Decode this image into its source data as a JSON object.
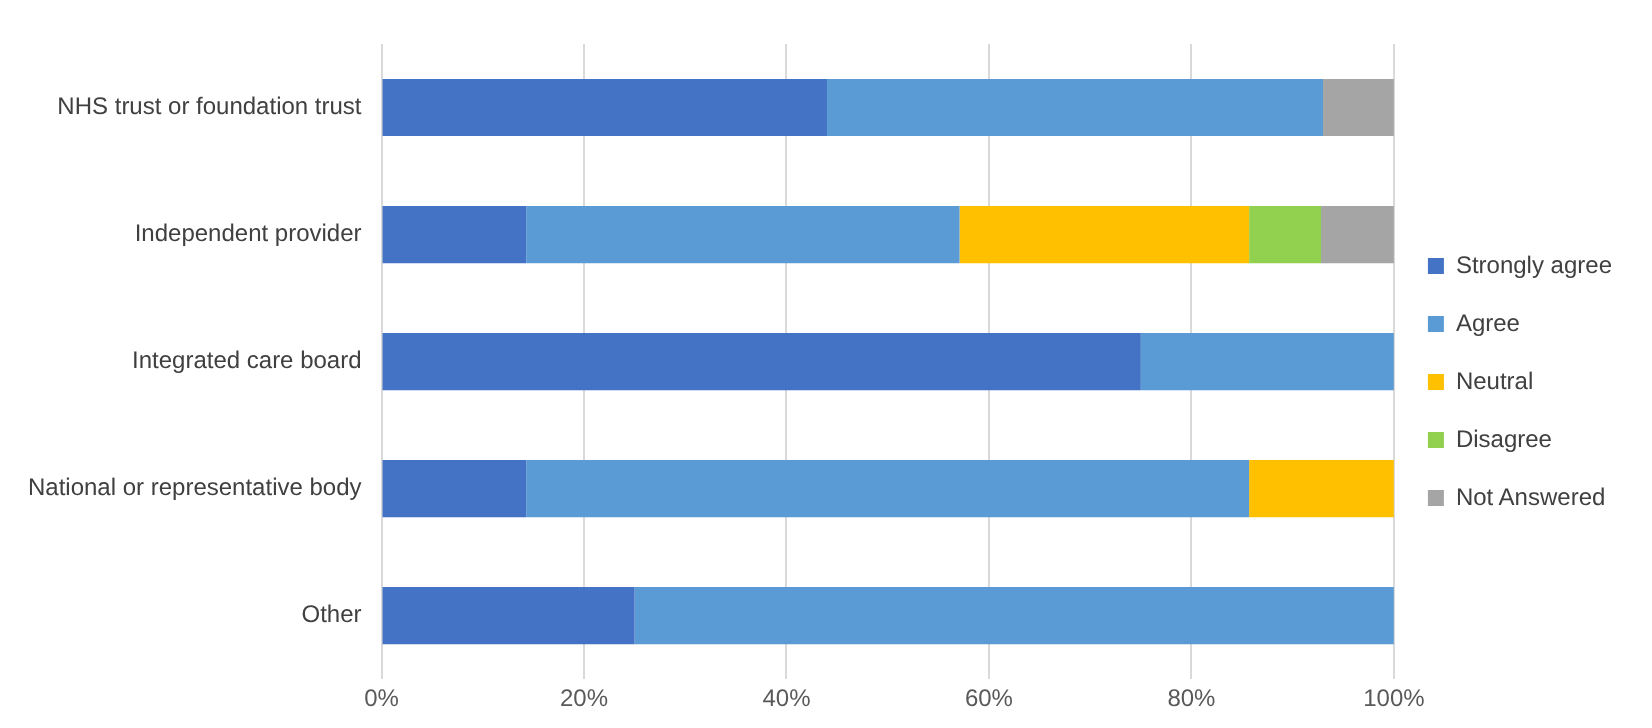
{
  "chart_data": {
    "type": "bar",
    "orientation": "horizontal",
    "stacked": true,
    "categories": [
      "NHS trust or foundation trust",
      "Independent provider",
      "Integrated care board",
      "National or representative body",
      "Other"
    ],
    "series": [
      {
        "name": "Strongly agree",
        "color": "#4472c4",
        "values": [
          44,
          14.3,
          75,
          14.3,
          25
        ]
      },
      {
        "name": "Agree",
        "color": "#5b9bd5",
        "values": [
          49,
          42.8,
          25,
          71.4,
          75
        ]
      },
      {
        "name": "Neutral",
        "color": "#ffc000",
        "values": [
          0,
          28.6,
          0,
          14.3,
          0
        ]
      },
      {
        "name": "Disagree",
        "color": "#92d050",
        "values": [
          0,
          7.1,
          0,
          0,
          0
        ]
      },
      {
        "name": "Not Answered",
        "color": "#a5a5a5",
        "values": [
          7,
          7.2,
          0,
          0,
          0
        ]
      }
    ],
    "xlim": [
      0,
      100
    ],
    "xticks": [
      {
        "value": 0,
        "label": "0%"
      },
      {
        "value": 20,
        "label": "20%"
      },
      {
        "value": 40,
        "label": "40%"
      },
      {
        "value": 60,
        "label": "60%"
      },
      {
        "value": 80,
        "label": "80%"
      },
      {
        "value": 100,
        "label": "100%"
      }
    ],
    "grid": "x",
    "legend": "right"
  }
}
